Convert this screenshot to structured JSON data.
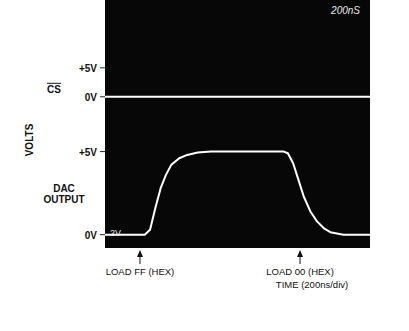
{
  "chart_data": [
    {
      "type": "line",
      "ylabel": "VOLTS",
      "xlim": [
        0,
        2000
      ],
      "ylim": [
        -4,
        16.7
      ],
      "yticks": [
        {
          "value": 5,
          "label": "+5V"
        },
        {
          "value": 0,
          "label": "0V"
        }
      ],
      "grid": false,
      "tick_labels": "y",
      "screen_labels": [
        "200nS"
      ],
      "series": [
        {
          "name": "CS",
          "color": "#ffffff",
          "x": [
            0,
            2000
          ],
          "values": [
            0,
            0
          ]
        }
      ]
    },
    {
      "type": "line",
      "xlabel": "TIME (200ns/div)",
      "xlim": [
        0,
        2000
      ],
      "ylim": [
        -0.8,
        6.9
      ],
      "yticks": [
        {
          "value": 5,
          "label": "+5V"
        },
        {
          "value": 0,
          "label": "0V"
        }
      ],
      "grid": false,
      "tick_labels": "y",
      "screen_labels": [
        "2V"
      ],
      "annotations": [
        {
          "x": 264,
          "text": "LOAD FF (HEX)"
        },
        {
          "x": 1472,
          "text": "LOAD 00 (HEX)"
        }
      ],
      "series": [
        {
          "name": "DAC OUTPUT",
          "color": "#ffffff",
          "x": [
            0,
            200,
            300,
            340,
            380,
            420,
            460,
            500,
            560,
            620,
            700,
            800,
            1000,
            1200,
            1350,
            1380,
            1420,
            1460,
            1500,
            1550,
            1600,
            1650,
            1700,
            1800,
            2000
          ],
          "values": [
            0,
            0,
            0,
            0.3,
            1.6,
            2.8,
            3.6,
            4.2,
            4.6,
            4.8,
            4.95,
            5,
            5,
            5,
            5,
            4.9,
            4.3,
            3.3,
            2.3,
            1.4,
            0.8,
            0.4,
            0.15,
            0,
            0
          ]
        }
      ]
    }
  ]
}
